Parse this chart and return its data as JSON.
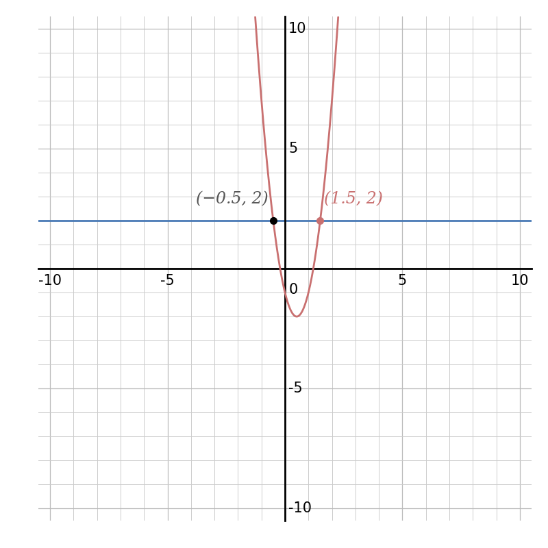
{
  "title": "",
  "xlim": [
    -10.5,
    10.5
  ],
  "ylim": [
    -10.5,
    10.5
  ],
  "xticks": [
    -10,
    -5,
    0,
    5,
    10
  ],
  "yticks": [
    -10,
    -5,
    5,
    10
  ],
  "grid_minor_color": "#cccccc",
  "grid_major_color": "#bbbbbb",
  "axis_color": "#000000",
  "parabola_color": "#c97070",
  "hline_y": 2,
  "hline_color": "#4a7ab5",
  "hline_lw": 2.0,
  "parabola_lw": 2.0,
  "point1": [
    -0.5,
    2
  ],
  "point2": [
    1.5,
    2
  ],
  "point1_color": "#000000",
  "point2_color": "#c97070",
  "point_size": 7,
  "label1": "(−0.5, 2)",
  "label2": "(1.5, 2)",
  "label1_color": "#555555",
  "label2_color": "#c97070",
  "label_fontsize": 17,
  "tick_fontsize": 15,
  "figsize": [
    8,
    8
  ],
  "dpi": 100
}
